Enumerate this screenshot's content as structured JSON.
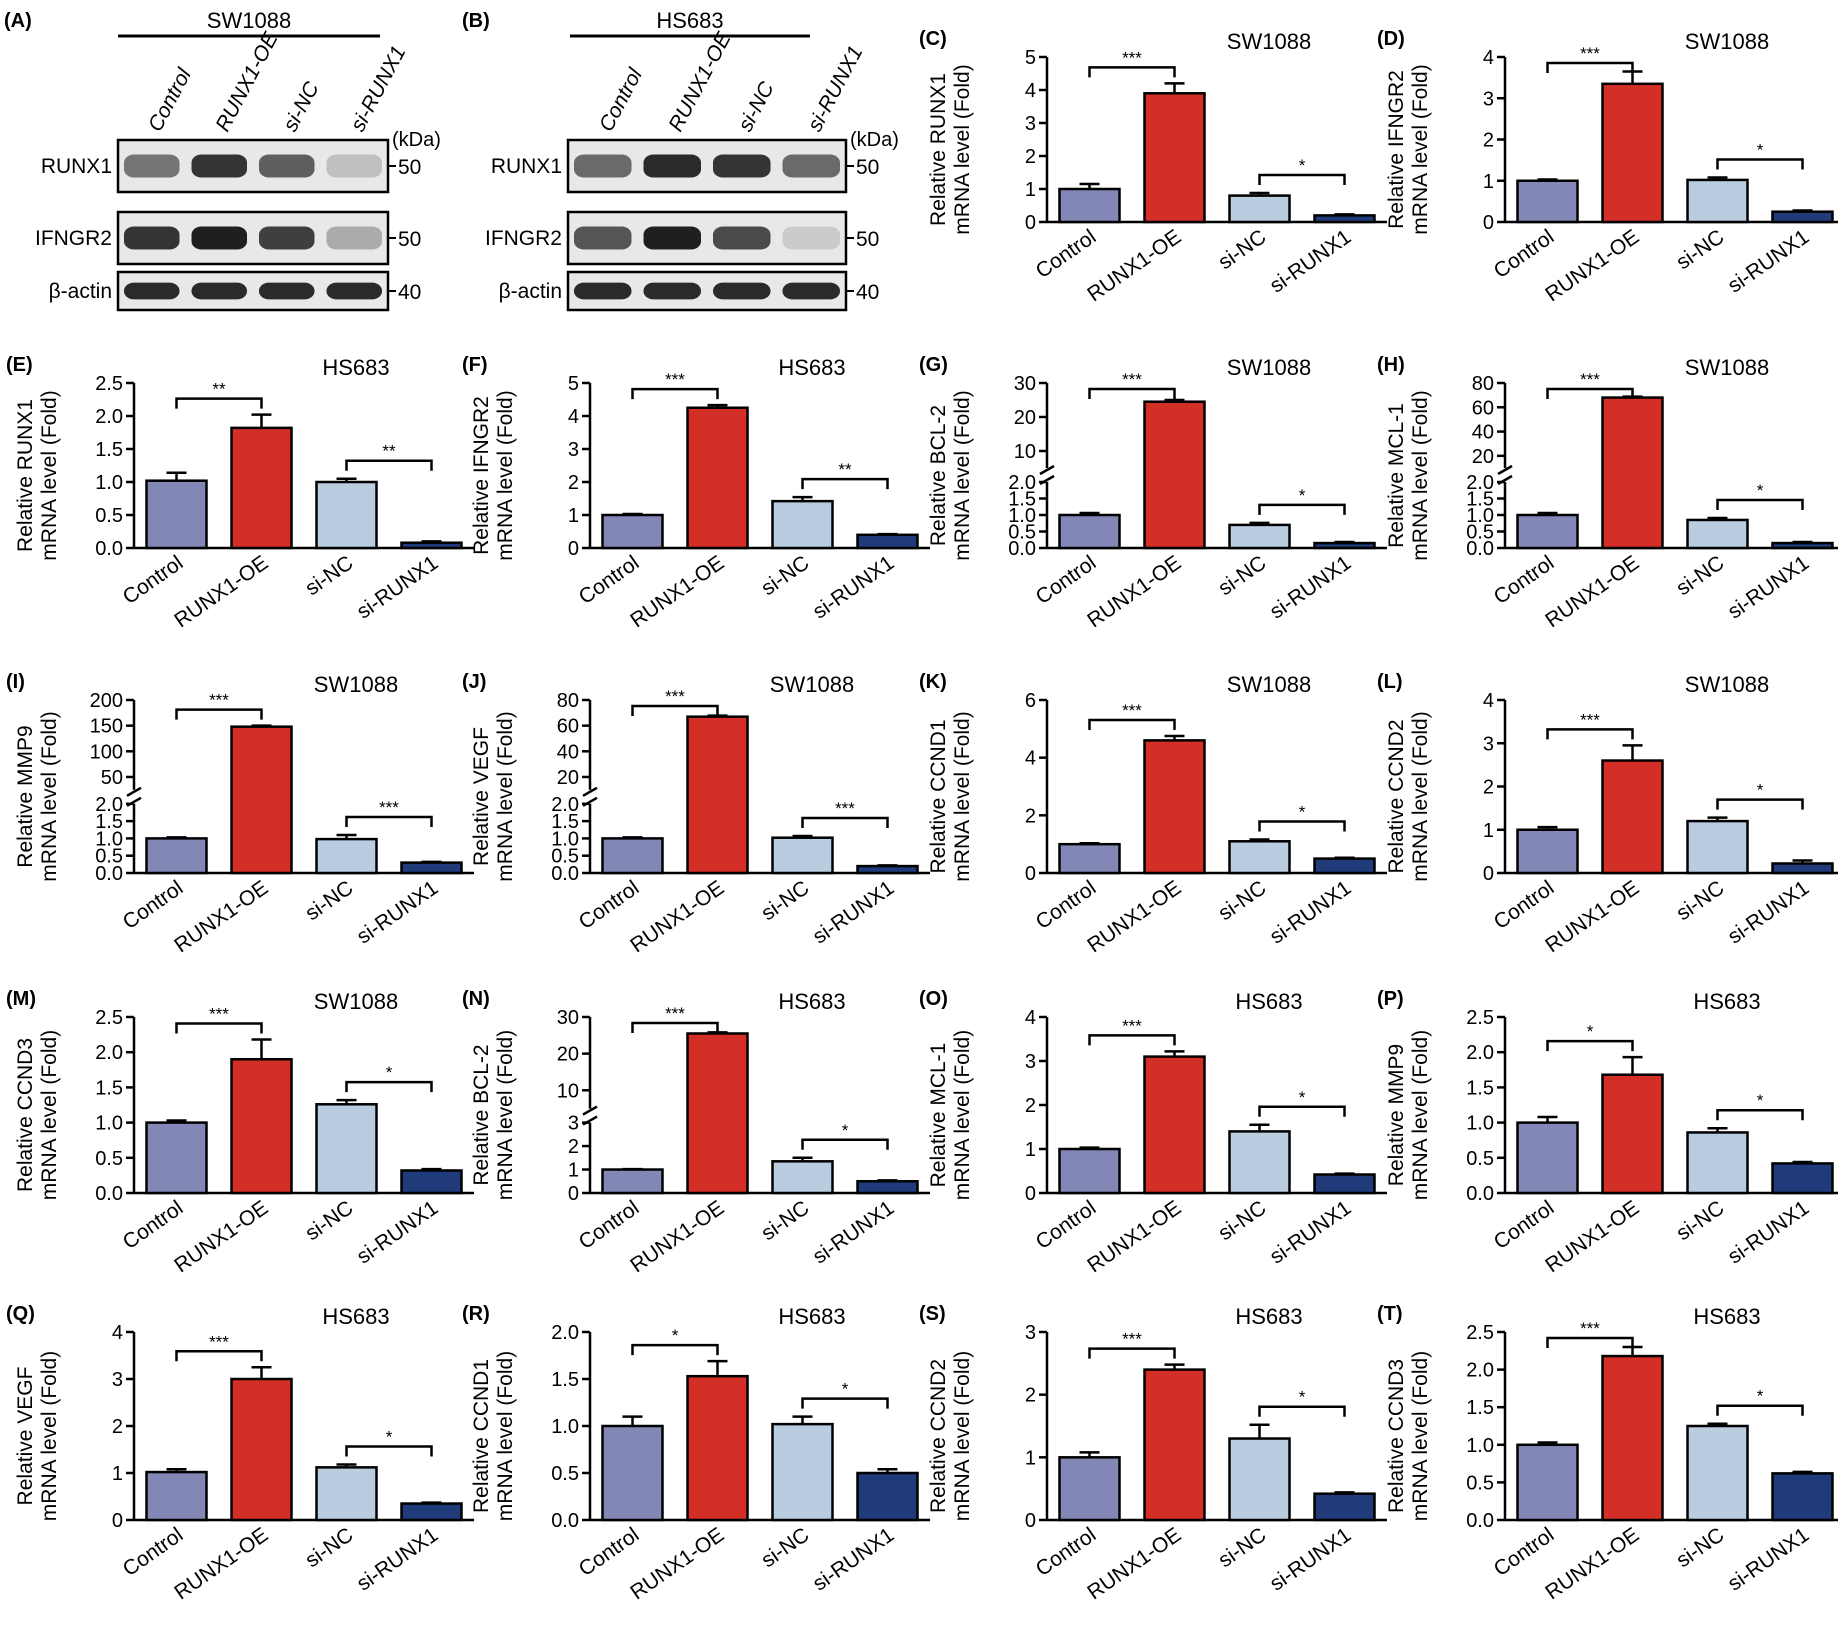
{
  "figure": {
    "groups": [
      "Control",
      "RUNX1-OE",
      "si-NC",
      "si-RUNX1"
    ],
    "group_colors": [
      "#8387b5",
      "#d42f26",
      "#b9cce0",
      "#1f3b7a"
    ],
    "ylabel_line2": "mRNA level (Fold)"
  },
  "western_blots": [
    {
      "panel": "(A)",
      "cell_line": "SW1088",
      "lanes": [
        "Control",
        "RUNX1-OE",
        "si-NC",
        "si-RUNX1"
      ],
      "unit_label": "(kDa)",
      "rows": [
        {
          "protein": "RUNX1",
          "kda": "50",
          "intensity": [
            0.55,
            0.85,
            0.65,
            0.2
          ]
        },
        {
          "protein": "IFNGR2",
          "kda": "50",
          "intensity": [
            0.85,
            0.95,
            0.8,
            0.3
          ]
        },
        {
          "protein": "β-actin",
          "kda": "40",
          "intensity": [
            0.9,
            0.9,
            0.9,
            0.9
          ]
        }
      ]
    },
    {
      "panel": "(B)",
      "cell_line": "HS683",
      "lanes": [
        "Control",
        "RUNX1-OE",
        "si-NC",
        "si-RUNX1"
      ],
      "unit_label": "(kDa)",
      "rows": [
        {
          "protein": "RUNX1",
          "kda": "50",
          "intensity": [
            0.6,
            0.9,
            0.85,
            0.6
          ]
        },
        {
          "protein": "IFNGR2",
          "kda": "50",
          "intensity": [
            0.7,
            0.95,
            0.75,
            0.15
          ]
        },
        {
          "protein": "β-actin",
          "kda": "40",
          "intensity": [
            0.9,
            0.9,
            0.9,
            0.9
          ]
        }
      ]
    }
  ],
  "chart_data": [
    {
      "panel": "(C)",
      "type": "bar",
      "title": "SW1088",
      "ylabel": "Relative RUNX1",
      "categories": [
        "Control",
        "RUNX1-OE",
        "si-NC",
        "si-RUNX1"
      ],
      "values": [
        1.0,
        3.9,
        0.8,
        0.2
      ],
      "errors": [
        0.15,
        0.3,
        0.08,
        0.03
      ],
      "ylim": [
        0,
        5
      ],
      "yticks": [
        "0",
        "1",
        "2",
        "3",
        "4",
        "5"
      ],
      "sig": [
        "***",
        "*"
      ]
    },
    {
      "panel": "(D)",
      "type": "bar",
      "title": "SW1088",
      "ylabel": "Relative IFNGR2",
      "categories": [
        "Control",
        "RUNX1-OE",
        "si-NC",
        "si-RUNX1"
      ],
      "values": [
        1.0,
        3.35,
        1.02,
        0.25
      ],
      "errors": [
        0.03,
        0.3,
        0.06,
        0.03
      ],
      "ylim": [
        0,
        4
      ],
      "yticks": [
        "0",
        "1",
        "2",
        "3",
        "4"
      ],
      "sig": [
        "***",
        "*"
      ]
    },
    {
      "panel": "(E)",
      "type": "bar",
      "title": "HS683",
      "ylabel": "Relative RUNX1",
      "categories": [
        "Control",
        "RUNX1-OE",
        "si-NC",
        "si-RUNX1"
      ],
      "values": [
        1.02,
        1.82,
        1.0,
        0.08
      ],
      "errors": [
        0.12,
        0.2,
        0.05,
        0.02
      ],
      "ylim": [
        0,
        2.5
      ],
      "yticks": [
        "0.0",
        "0.5",
        "1.0",
        "1.5",
        "2.0",
        "2.5"
      ],
      "sig": [
        "**",
        "**"
      ]
    },
    {
      "panel": "(F)",
      "type": "bar",
      "title": "HS683",
      "ylabel": "Relative IFNGR2",
      "categories": [
        "Control",
        "RUNX1-OE",
        "si-NC",
        "si-RUNX1"
      ],
      "values": [
        1.0,
        4.25,
        1.42,
        0.4
      ],
      "errors": [
        0.03,
        0.08,
        0.12,
        0.02
      ],
      "ylim": [
        0,
        5
      ],
      "yticks": [
        "0",
        "1",
        "2",
        "3",
        "4",
        "5"
      ],
      "sig": [
        "***",
        "**"
      ]
    },
    {
      "panel": "(G)",
      "type": "bar",
      "title": "SW1088",
      "ylabel": "Relative BCL-2",
      "categories": [
        "Control",
        "RUNX1-OE",
        "si-NC",
        "si-RUNX1"
      ],
      "values": [
        1.0,
        24.5,
        0.7,
        0.15
      ],
      "errors": [
        0.06,
        0.5,
        0.06,
        0.03
      ],
      "broken_axis": {
        "lower": [
          0,
          2
        ],
        "upper": [
          5,
          30
        ]
      },
      "yticks_lower": [
        "0.0",
        "0.5",
        "1.0",
        "1.5",
        "2.0"
      ],
      "yticks_upper": [
        "10",
        "20",
        "30"
      ],
      "sig": [
        "***",
        "*"
      ]
    },
    {
      "panel": "(H)",
      "type": "bar",
      "title": "SW1088",
      "ylabel": "Relative MCL-1",
      "categories": [
        "Control",
        "RUNX1-OE",
        "si-NC",
        "si-RUNX1"
      ],
      "values": [
        1.0,
        68,
        0.85,
        0.15
      ],
      "errors": [
        0.06,
        0.8,
        0.06,
        0.03
      ],
      "broken_axis": {
        "lower": [
          0,
          2
        ],
        "upper": [
          10,
          80
        ]
      },
      "yticks_lower": [
        "0.0",
        "0.5",
        "1.0",
        "1.5",
        "2.0"
      ],
      "yticks_upper": [
        "20",
        "40",
        "60",
        "80"
      ],
      "sig": [
        "***",
        "*"
      ]
    },
    {
      "panel": "(I)",
      "type": "bar",
      "title": "SW1088",
      "ylabel": "Relative MMP9",
      "categories": [
        "Control",
        "RUNX1-OE",
        "si-NC",
        "si-RUNX1"
      ],
      "values": [
        1.0,
        148,
        0.98,
        0.3
      ],
      "errors": [
        0.03,
        2,
        0.12,
        0.02
      ],
      "broken_axis": {
        "lower": [
          0,
          2
        ],
        "upper": [
          25,
          200
        ]
      },
      "yticks_lower": [
        "0.0",
        "0.5",
        "1.0",
        "1.5",
        "2.0"
      ],
      "yticks_upper": [
        "50",
        "100",
        "150",
        "200"
      ],
      "sig": [
        "***",
        "***"
      ]
    },
    {
      "panel": "(J)",
      "type": "bar",
      "title": "SW1088",
      "ylabel": "Relative VEGF",
      "categories": [
        "Control",
        "RUNX1-OE",
        "si-NC",
        "si-RUNX1"
      ],
      "values": [
        1.0,
        67,
        1.02,
        0.2
      ],
      "errors": [
        0.03,
        0.8,
        0.05,
        0.02
      ],
      "broken_axis": {
        "lower": [
          0,
          2
        ],
        "upper": [
          10,
          80
        ]
      },
      "yticks_lower": [
        "0.0",
        "0.5",
        "1.0",
        "1.5",
        "2.0"
      ],
      "yticks_upper": [
        "20",
        "40",
        "60",
        "80"
      ],
      "sig": [
        "***",
        "***"
      ]
    },
    {
      "panel": "(K)",
      "type": "bar",
      "title": "SW1088",
      "ylabel": "Relative CCND1",
      "categories": [
        "Control",
        "RUNX1-OE",
        "si-NC",
        "si-RUNX1"
      ],
      "values": [
        1.0,
        4.6,
        1.1,
        0.5
      ],
      "errors": [
        0.03,
        0.15,
        0.06,
        0.03
      ],
      "ylim": [
        0,
        6
      ],
      "yticks": [
        "0",
        "2",
        "4",
        "6"
      ],
      "sig": [
        "***",
        "*"
      ]
    },
    {
      "panel": "(L)",
      "type": "bar",
      "title": "SW1088",
      "ylabel": "Relative CCND2",
      "categories": [
        "Control",
        "RUNX1-OE",
        "si-NC",
        "si-RUNX1"
      ],
      "values": [
        1.0,
        2.6,
        1.2,
        0.22
      ],
      "errors": [
        0.06,
        0.35,
        0.08,
        0.07
      ],
      "ylim": [
        0,
        4
      ],
      "yticks": [
        "0",
        "1",
        "2",
        "3",
        "4"
      ],
      "sig": [
        "***",
        "*"
      ]
    },
    {
      "panel": "(M)",
      "type": "bar",
      "title": "SW1088",
      "ylabel": "Relative CCND3",
      "categories": [
        "Control",
        "RUNX1-OE",
        "si-NC",
        "si-RUNX1"
      ],
      "values": [
        1.0,
        1.9,
        1.26,
        0.32
      ],
      "errors": [
        0.03,
        0.28,
        0.06,
        0.02
      ],
      "ylim": [
        0,
        2.5
      ],
      "yticks": [
        "0.0",
        "0.5",
        "1.0",
        "1.5",
        "2.0",
        "2.5"
      ],
      "sig": [
        "***",
        "*"
      ]
    },
    {
      "panel": "(N)",
      "type": "bar",
      "title": "HS683",
      "ylabel": "Relative BCL-2",
      "categories": [
        "Control",
        "RUNX1-OE",
        "si-NC",
        "si-RUNX1"
      ],
      "values": [
        1.0,
        25.5,
        1.35,
        0.5
      ],
      "errors": [
        0.02,
        0.3,
        0.15,
        0.04
      ],
      "broken_axis": {
        "lower": [
          0,
          3
        ],
        "upper": [
          5,
          30
        ]
      },
      "yticks_lower": [
        "0",
        "1",
        "2",
        "3"
      ],
      "yticks_upper": [
        "10",
        "20",
        "30"
      ],
      "sig": [
        "***",
        "*"
      ]
    },
    {
      "panel": "(O)",
      "type": "bar",
      "title": "HS683",
      "ylabel": "Relative MCL-1",
      "categories": [
        "Control",
        "RUNX1-OE",
        "si-NC",
        "si-RUNX1"
      ],
      "values": [
        1.0,
        3.1,
        1.4,
        0.42
      ],
      "errors": [
        0.03,
        0.12,
        0.15,
        0.02
      ],
      "ylim": [
        0,
        4
      ],
      "yticks": [
        "0",
        "1",
        "2",
        "3",
        "4"
      ],
      "sig": [
        "***",
        "*"
      ]
    },
    {
      "panel": "(P)",
      "type": "bar",
      "title": "HS683",
      "ylabel": "Relative MMP9",
      "categories": [
        "Control",
        "RUNX1-OE",
        "si-NC",
        "si-RUNX1"
      ],
      "values": [
        1.0,
        1.68,
        0.86,
        0.42
      ],
      "errors": [
        0.08,
        0.25,
        0.06,
        0.02
      ],
      "ylim": [
        0,
        2.5
      ],
      "yticks": [
        "0.0",
        "0.5",
        "1.0",
        "1.5",
        "2.0",
        "2.5"
      ],
      "sig": [
        "*",
        "*"
      ]
    },
    {
      "panel": "(Q)",
      "type": "bar",
      "title": "HS683",
      "ylabel": "Relative VEGF",
      "categories": [
        "Control",
        "RUNX1-OE",
        "si-NC",
        "si-RUNX1"
      ],
      "values": [
        1.02,
        3.0,
        1.12,
        0.35
      ],
      "errors": [
        0.06,
        0.25,
        0.06,
        0.02
      ],
      "ylim": [
        0,
        4
      ],
      "yticks": [
        "0",
        "1",
        "2",
        "3",
        "4"
      ],
      "sig": [
        "***",
        "*"
      ]
    },
    {
      "panel": "(R)",
      "type": "bar",
      "title": "HS683",
      "ylabel": "Relative CCND1",
      "categories": [
        "Control",
        "RUNX1-OE",
        "si-NC",
        "si-RUNX1"
      ],
      "values": [
        1.0,
        1.53,
        1.02,
        0.5
      ],
      "errors": [
        0.1,
        0.16,
        0.08,
        0.04
      ],
      "ylim": [
        0,
        2.0
      ],
      "yticks": [
        "0.0",
        "0.5",
        "1.0",
        "1.5",
        "2.0"
      ],
      "sig": [
        "*",
        "*"
      ]
    },
    {
      "panel": "(S)",
      "type": "bar",
      "title": "HS683",
      "ylabel": "Relative CCND2",
      "categories": [
        "Control",
        "RUNX1-OE",
        "si-NC",
        "si-RUNX1"
      ],
      "values": [
        1.0,
        2.4,
        1.3,
        0.42
      ],
      "errors": [
        0.08,
        0.08,
        0.22,
        0.02
      ],
      "ylim": [
        0,
        3
      ],
      "yticks": [
        "0",
        "1",
        "2",
        "3"
      ],
      "sig": [
        "***",
        "*"
      ]
    },
    {
      "panel": "(T)",
      "type": "bar",
      "title": "HS683",
      "ylabel": "Relative CCND3",
      "categories": [
        "Control",
        "RUNX1-OE",
        "si-NC",
        "si-RUNX1"
      ],
      "values": [
        1.0,
        2.18,
        1.25,
        0.62
      ],
      "errors": [
        0.03,
        0.12,
        0.03,
        0.02
      ],
      "ylim": [
        0,
        2.5
      ],
      "yticks": [
        "0.0",
        "0.5",
        "1.0",
        "1.5",
        "2.0",
        "2.5"
      ],
      "sig": [
        "***",
        "*"
      ]
    }
  ]
}
